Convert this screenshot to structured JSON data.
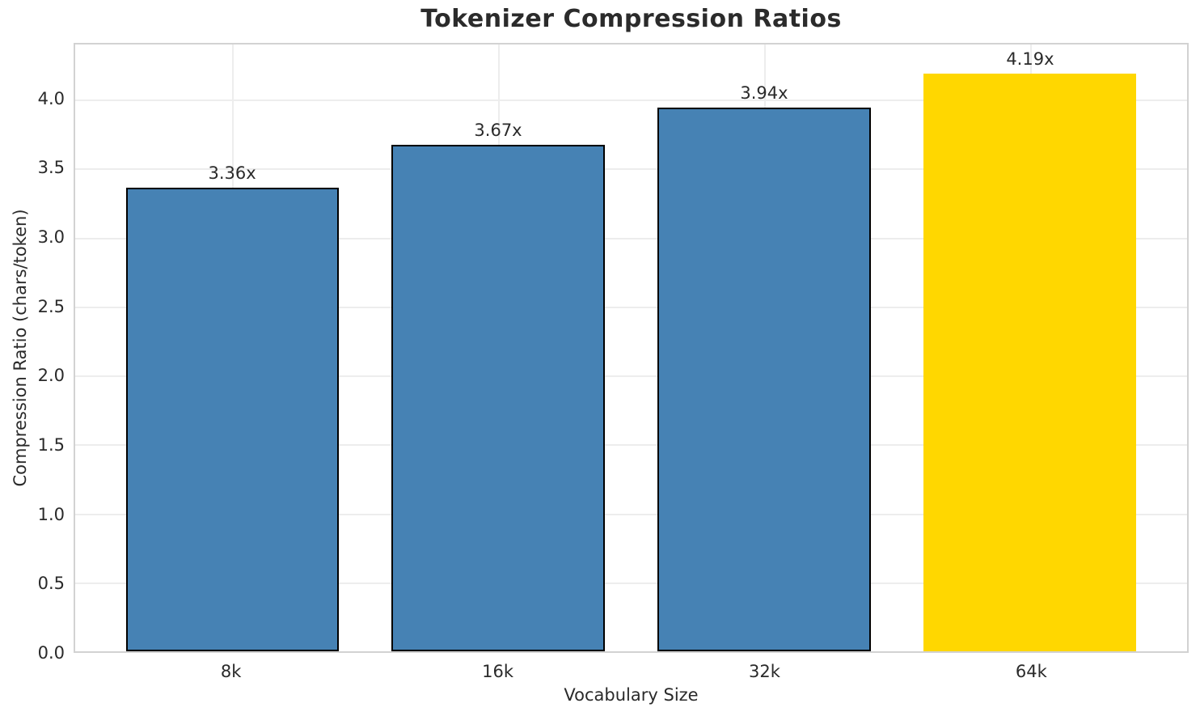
{
  "chart_data": {
    "type": "bar",
    "title": "Tokenizer Compression Ratios",
    "xlabel": "Vocabulary Size",
    "ylabel": "Compression Ratio (chars/token)",
    "categories": [
      "8k",
      "16k",
      "32k",
      "64k"
    ],
    "values": [
      3.36,
      3.67,
      3.94,
      4.19
    ],
    "bar_labels": [
      "3.36x",
      "3.67x",
      "3.94x",
      "4.19x"
    ],
    "bar_colors": [
      "#4682B4",
      "#4682B4",
      "#4682B4",
      "#FFD700"
    ],
    "bar_edge_colors": [
      "#000000",
      "#000000",
      "#000000",
      "none"
    ],
    "ylim": [
      0,
      4.4
    ],
    "yticks": [
      "0.0",
      "0.5",
      "1.0",
      "1.5",
      "2.0",
      "2.5",
      "3.0",
      "3.5",
      "4.0"
    ],
    "grid": true,
    "grid_axes": "both",
    "legend": false,
    "highlight_category": "64k"
  },
  "colors": {
    "bar_default": "#4682B4",
    "bar_highlight": "#FFD700",
    "bar_edge": "#000000",
    "gridline": "#ededed",
    "spine": "#d2d2d2",
    "text": "#2a2a2a",
    "title_text": "#2b2b2b",
    "background": "#ffffff"
  }
}
